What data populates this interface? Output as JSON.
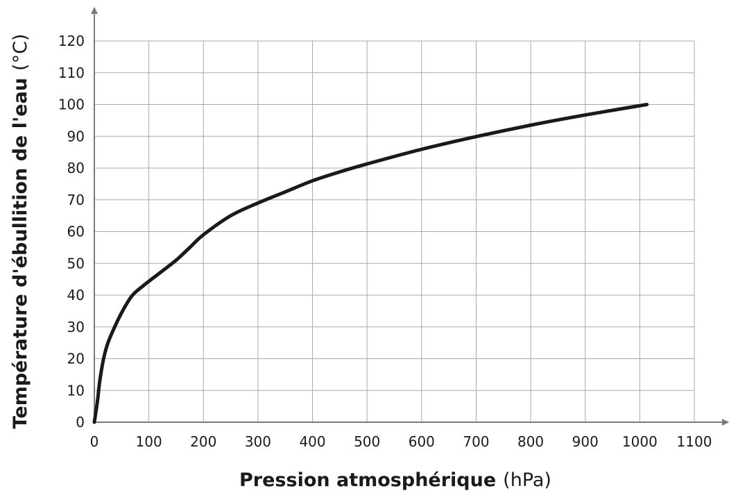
{
  "chart_data": {
    "type": "line",
    "title": "",
    "xlabel": "Pression atmosphérique",
    "xlabel_unit": "(hPa)",
    "ylabel": "Température d'ébullition de l'eau",
    "ylabel_unit": "(°C)",
    "xlim": [
      0,
      1100
    ],
    "ylim": [
      0,
      120
    ],
    "x_ticks": [
      "0",
      "100",
      "200",
      "300",
      "400",
      "500",
      "600",
      "700",
      "800",
      "900",
      "1000",
      "1100"
    ],
    "y_ticks": [
      "0",
      "10",
      "20",
      "30",
      "40",
      "50",
      "60",
      "70",
      "80",
      "90",
      "100",
      "110",
      "120"
    ],
    "grid": true,
    "legend": "none",
    "series": [
      {
        "color": "#1a1a1a",
        "x": [
          0,
          6,
          10,
          17,
          25,
          40,
          55,
          70,
          90,
          120,
          150,
          175,
          200,
          250,
          300,
          350,
          400,
          450,
          500,
          600,
          700,
          800,
          900,
          1013
        ],
        "y": [
          0,
          7,
          13,
          20,
          25,
          31,
          36,
          40,
          43,
          47,
          51,
          55,
          59,
          65,
          69,
          72.5,
          76,
          78.8,
          81.3,
          85.9,
          89.9,
          93.5,
          96.7,
          100
        ]
      }
    ]
  }
}
